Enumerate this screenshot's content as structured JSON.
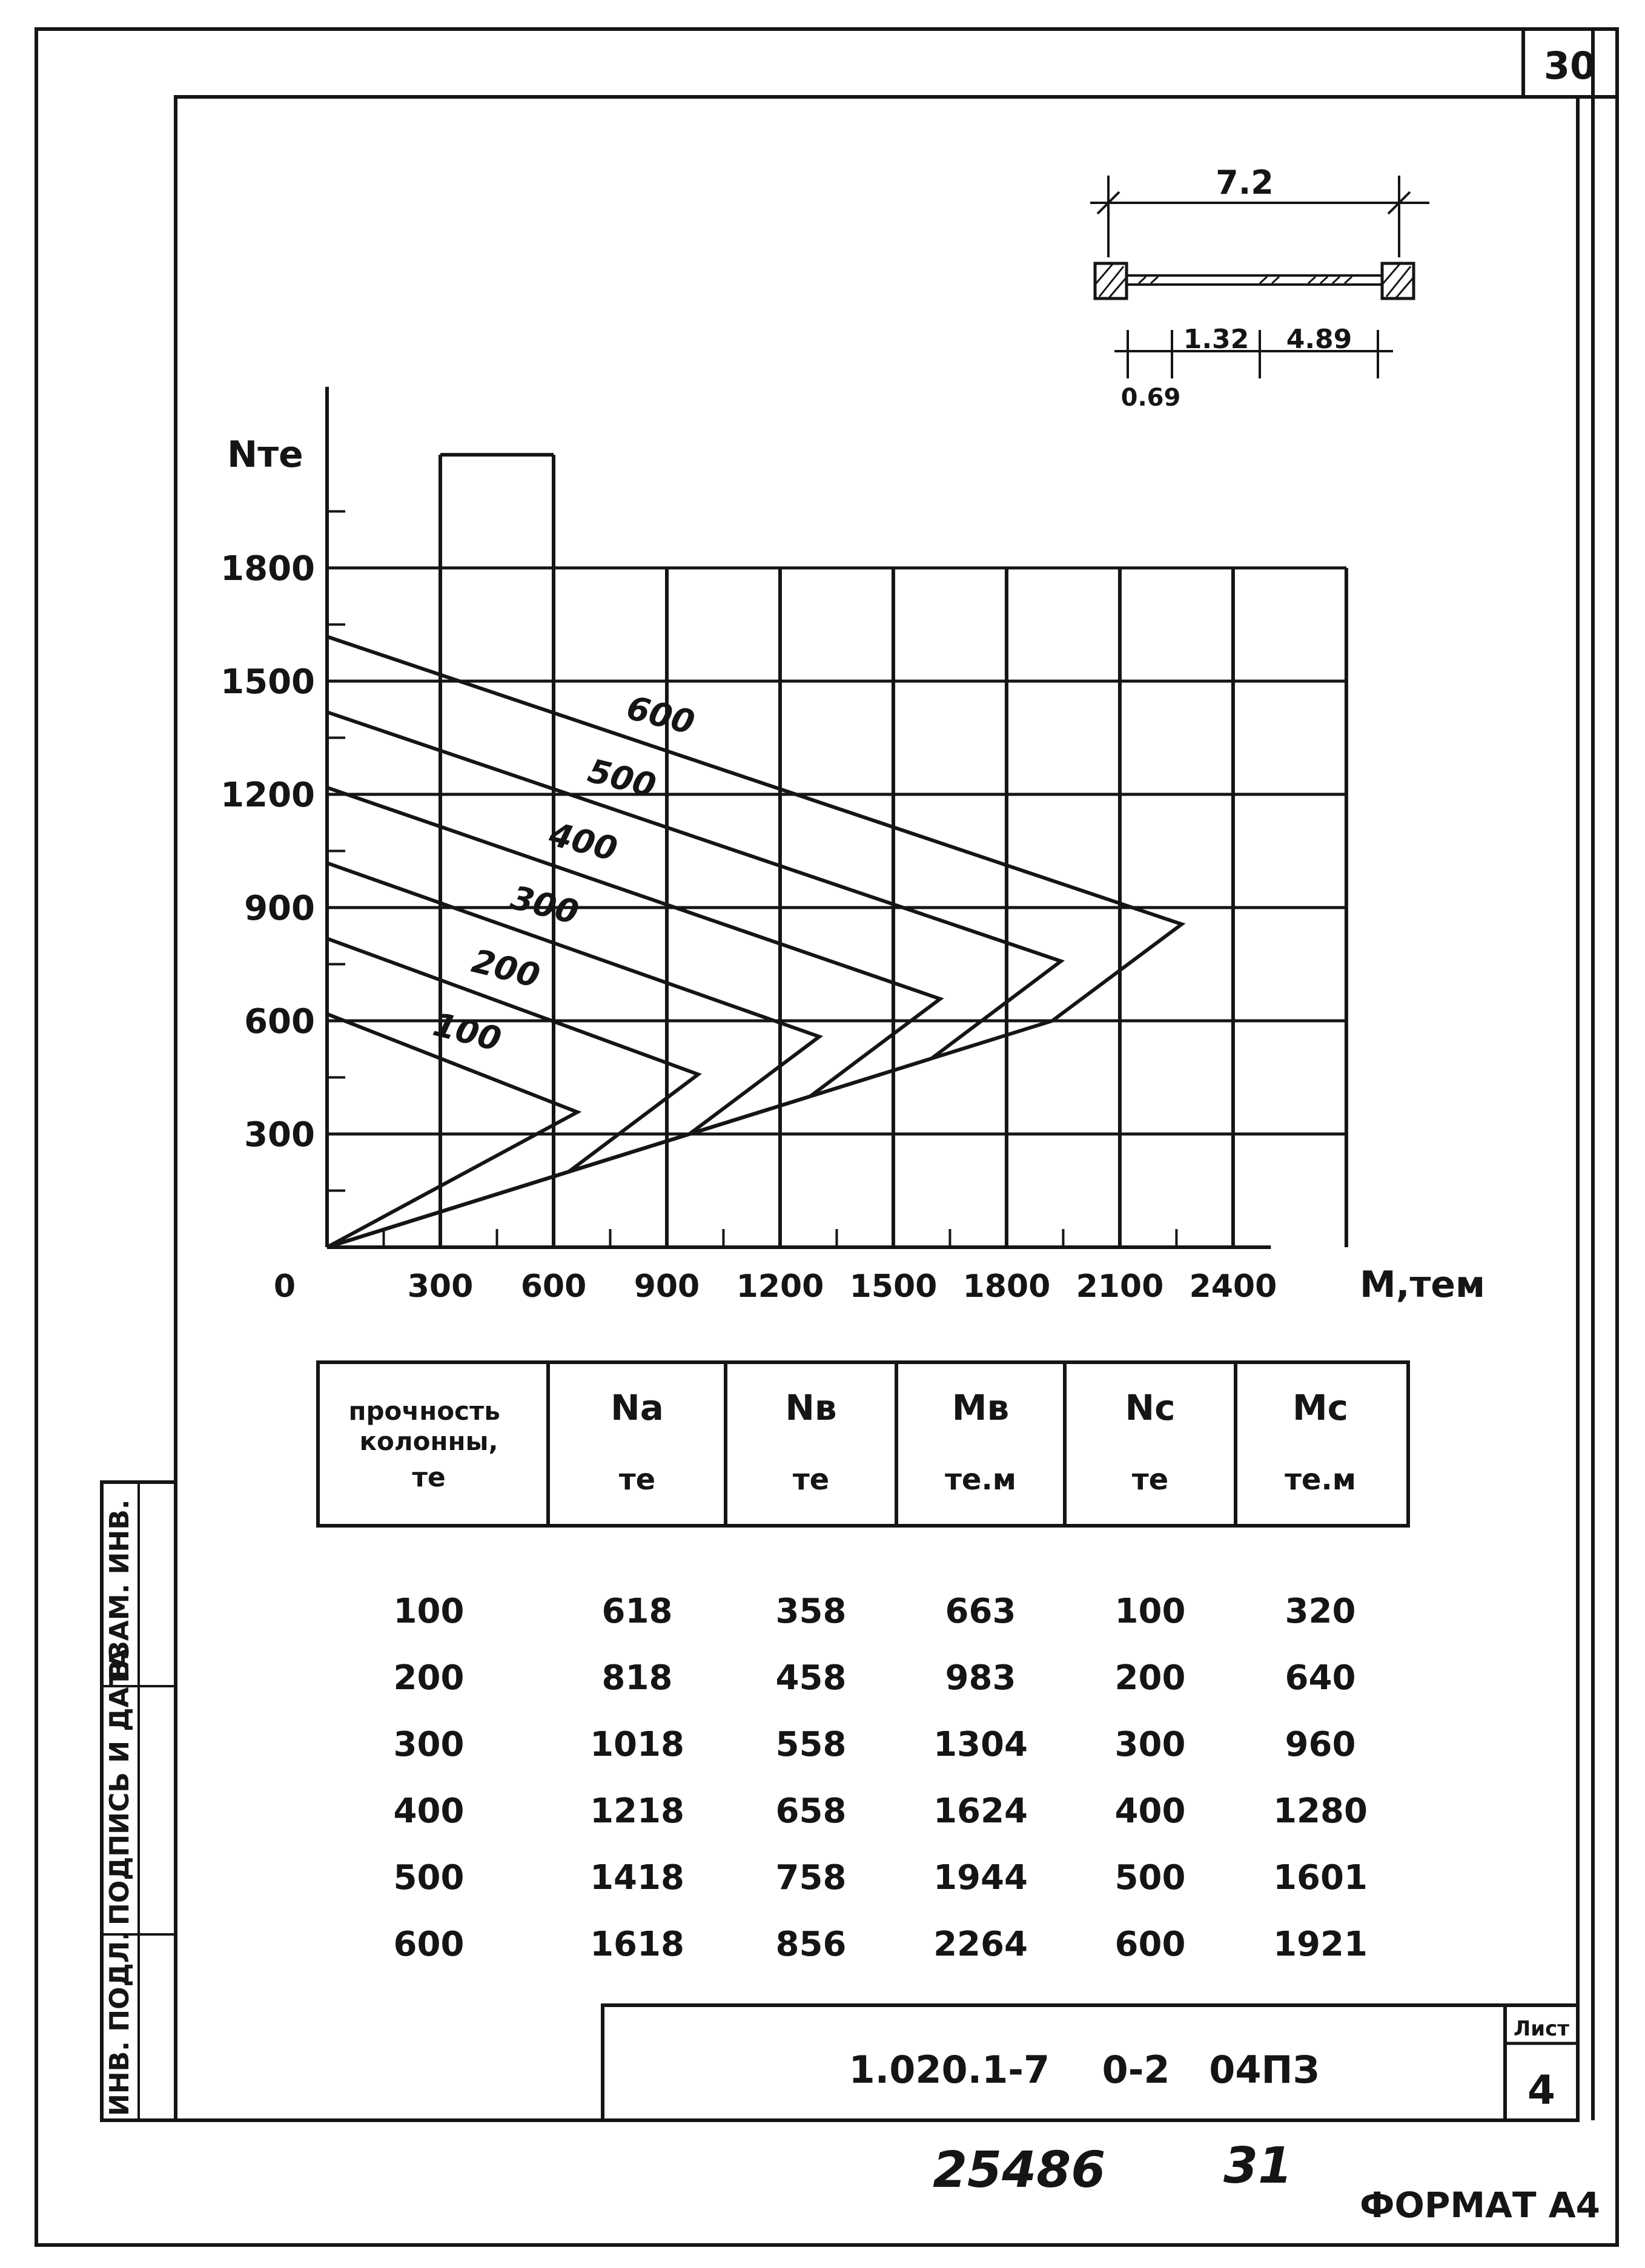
{
  "sheet_number": "30",
  "section_sketch": {
    "overall_width": "7.2",
    "dim_a": "1.32",
    "dim_b": "4.89",
    "dim_c": "0.69"
  },
  "chart_data": {
    "type": "line",
    "ylabel": "Nте",
    "xlabel": "М,тем",
    "origin_label": "0",
    "x_ticks": [
      "300",
      "600",
      "900",
      "1200",
      "1500",
      "1800",
      "2100",
      "2400"
    ],
    "y_ticks": [
      "300",
      "600",
      "900",
      "1200",
      "1500",
      "1800"
    ],
    "xlim": [
      0,
      2700
    ],
    "ylim": [
      0,
      2100
    ],
    "grid": true,
    "series": [
      {
        "name": "100",
        "points": [
          [
            0,
            0
          ],
          [
            663,
            358
          ],
          [
            0,
            618
          ]
        ]
      },
      {
        "name": "200",
        "points": [
          [
            0,
            0
          ],
          [
            640,
            200
          ],
          [
            983,
            458
          ],
          [
            0,
            818
          ]
        ]
      },
      {
        "name": "300",
        "points": [
          [
            0,
            0
          ],
          [
            960,
            300
          ],
          [
            1304,
            558
          ],
          [
            0,
            1018
          ]
        ]
      },
      {
        "name": "400",
        "points": [
          [
            0,
            0
          ],
          [
            1280,
            400
          ],
          [
            1624,
            658
          ],
          [
            0,
            1218
          ]
        ]
      },
      {
        "name": "500",
        "points": [
          [
            0,
            0
          ],
          [
            1601,
            500
          ],
          [
            1944,
            758
          ],
          [
            0,
            1418
          ]
        ]
      },
      {
        "name": "600",
        "points": [
          [
            0,
            0
          ],
          [
            1921,
            600
          ],
          [
            2264,
            856
          ],
          [
            0,
            1618
          ]
        ]
      }
    ]
  },
  "table": {
    "headers": [
      {
        "title": "прочность колонны,",
        "unit": "те"
      },
      {
        "title": "Na",
        "unit": "те"
      },
      {
        "title": "Nв",
        "unit": "те"
      },
      {
        "title": "Мв",
        "unit": "те.м"
      },
      {
        "title": "Nc",
        "unit": "те"
      },
      {
        "title": "Мc",
        "unit": "те.м"
      }
    ],
    "rows": [
      [
        "100",
        "618",
        "358",
        "663",
        "100",
        "320"
      ],
      [
        "200",
        "818",
        "458",
        "983",
        "200",
        "640"
      ],
      [
        "300",
        "1018",
        "558",
        "1304",
        "300",
        "960"
      ],
      [
        "400",
        "1218",
        "658",
        "1624",
        "400",
        "1280"
      ],
      [
        "500",
        "1418",
        "758",
        "1944",
        "500",
        "1601"
      ],
      [
        "600",
        "1618",
        "856",
        "2264",
        "600",
        "1921"
      ]
    ]
  },
  "side_stamp": {
    "inv_podl": "ИНВ. ПОДЛ.",
    "podpis_data": "ПОДПИСЬ И ДАТА",
    "vzam_inv": "ВЗАМ. ИНВ."
  },
  "title_block": {
    "designation": "1.020.1-7    0-2   04ПЗ",
    "sheet_label": "Лист",
    "sheet_value": "4"
  },
  "handwritten": {
    "left": "25486",
    "right": "31"
  },
  "format_label": "ФОРМАТ А4"
}
